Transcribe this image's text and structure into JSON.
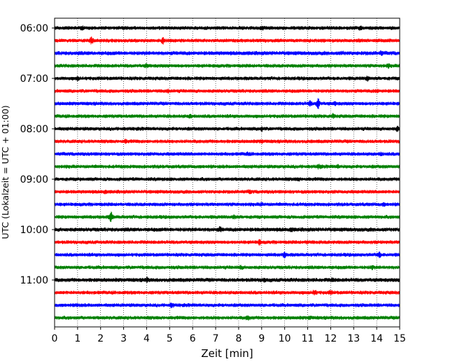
{
  "chart_data": {
    "type": "line",
    "xlabel": "Zeit  [min]",
    "ylabel": "UTC (Lokalzeit = UTC + 01:00)",
    "xlim": [
      0,
      15
    ],
    "x_ticks": [
      0,
      1,
      2,
      3,
      4,
      5,
      6,
      7,
      8,
      9,
      10,
      11,
      12,
      13,
      14,
      15
    ],
    "y_tick_labels": [
      "06:00",
      "07:00",
      "08:00",
      "09:00",
      "10:00",
      "11:00"
    ],
    "grid_vertical": true,
    "trace_colors": [
      "#000000",
      "#ff0000",
      "#0000ff",
      "#008000"
    ],
    "series": [
      {
        "start": "06:00",
        "amplitude": 1.0,
        "events": [
          {
            "x": 1.2,
            "a": 1.5
          },
          {
            "x": 9.0,
            "a": 1.8
          },
          {
            "x": 13.3,
            "a": 1.6
          }
        ]
      },
      {
        "start": "06:15",
        "amplitude": 1.0,
        "events": [
          {
            "x": 1.6,
            "a": 2.6
          },
          {
            "x": 4.7,
            "a": 2.4
          },
          {
            "x": 13.2,
            "a": 1.5
          }
        ]
      },
      {
        "start": "06:30",
        "amplitude": 1.1,
        "events": [
          {
            "x": 12.5,
            "a": 1.4
          },
          {
            "x": 14.2,
            "a": 1.7
          }
        ]
      },
      {
        "start": "06:45",
        "amplitude": 1.0,
        "events": [
          {
            "x": 4.0,
            "a": 1.6
          },
          {
            "x": 14.5,
            "a": 1.6
          }
        ]
      },
      {
        "start": "07:00",
        "amplitude": 1.0,
        "events": [
          {
            "x": 1.0,
            "a": 1.7
          },
          {
            "x": 13.6,
            "a": 2.2
          }
        ]
      },
      {
        "start": "07:15",
        "amplitude": 1.0,
        "events": [
          {
            "x": 4.9,
            "a": 1.7
          },
          {
            "x": 14.0,
            "a": 1.5
          }
        ]
      },
      {
        "start": "07:30",
        "amplitude": 1.0,
        "events": [
          {
            "x": 11.1,
            "a": 2.0
          },
          {
            "x": 11.45,
            "a": 4.0
          },
          {
            "x": 12.2,
            "a": 1.6
          }
        ]
      },
      {
        "start": "07:45",
        "amplitude": 1.0,
        "events": [
          {
            "x": 5.9,
            "a": 1.6
          },
          {
            "x": 12.1,
            "a": 1.8
          }
        ]
      },
      {
        "start": "08:00",
        "amplitude": 1.0,
        "events": [
          {
            "x": 9.0,
            "a": 1.8
          },
          {
            "x": 14.9,
            "a": 1.9
          }
        ]
      },
      {
        "start": "08:15",
        "amplitude": 1.0,
        "events": [
          {
            "x": 3.1,
            "a": 1.6
          },
          {
            "x": 9.0,
            "a": 1.5
          }
        ]
      },
      {
        "start": "08:30",
        "amplitude": 1.0,
        "events": [
          {
            "x": 8.4,
            "a": 1.5
          },
          {
            "x": 14.2,
            "a": 1.6
          }
        ]
      },
      {
        "start": "08:45",
        "amplitude": 1.0,
        "events": [
          {
            "x": 11.5,
            "a": 1.9
          },
          {
            "x": 12.3,
            "a": 1.5
          }
        ]
      },
      {
        "start": "09:00",
        "amplitude": 1.0,
        "events": [
          {
            "x": 10.6,
            "a": 1.5
          }
        ]
      },
      {
        "start": "09:15",
        "amplitude": 1.0,
        "events": [
          {
            "x": 2.2,
            "a": 1.5
          },
          {
            "x": 8.5,
            "a": 1.6
          }
        ]
      },
      {
        "start": "09:30",
        "amplitude": 1.0,
        "events": [
          {
            "x": 9.0,
            "a": 1.5
          },
          {
            "x": 14.3,
            "a": 1.5
          }
        ]
      },
      {
        "start": "09:45",
        "amplitude": 1.0,
        "events": [
          {
            "x": 2.45,
            "a": 3.6
          },
          {
            "x": 7.8,
            "a": 1.8
          }
        ]
      },
      {
        "start": "10:00",
        "amplitude": 1.1,
        "events": [
          {
            "x": 7.2,
            "a": 2.0
          },
          {
            "x": 10.3,
            "a": 1.6
          }
        ]
      },
      {
        "start": "10:15",
        "amplitude": 1.0,
        "events": [
          {
            "x": 8.9,
            "a": 2.0
          },
          {
            "x": 11.0,
            "a": 1.6
          }
        ]
      },
      {
        "start": "10:30",
        "amplitude": 1.0,
        "events": [
          {
            "x": 10.0,
            "a": 2.2
          },
          {
            "x": 14.1,
            "a": 2.4
          }
        ]
      },
      {
        "start": "10:45",
        "amplitude": 1.0,
        "events": [
          {
            "x": 8.1,
            "a": 1.7
          },
          {
            "x": 13.8,
            "a": 1.8
          }
        ]
      },
      {
        "start": "11:00",
        "amplitude": 1.1,
        "events": [
          {
            "x": 4.0,
            "a": 1.8
          },
          {
            "x": 9.1,
            "a": 1.8
          },
          {
            "x": 12.1,
            "a": 1.6
          }
        ]
      },
      {
        "start": "11:15",
        "amplitude": 1.0,
        "events": [
          {
            "x": 11.3,
            "a": 2.2
          },
          {
            "x": 12.0,
            "a": 1.7
          }
        ]
      },
      {
        "start": "11:30",
        "amplitude": 1.0,
        "events": [
          {
            "x": 1.0,
            "a": 1.6
          },
          {
            "x": 5.1,
            "a": 2.0
          }
        ]
      },
      {
        "start": "11:45",
        "amplitude": 1.0,
        "events": [
          {
            "x": 8.4,
            "a": 2.0
          },
          {
            "x": 11.1,
            "a": 1.6
          }
        ]
      }
    ]
  }
}
